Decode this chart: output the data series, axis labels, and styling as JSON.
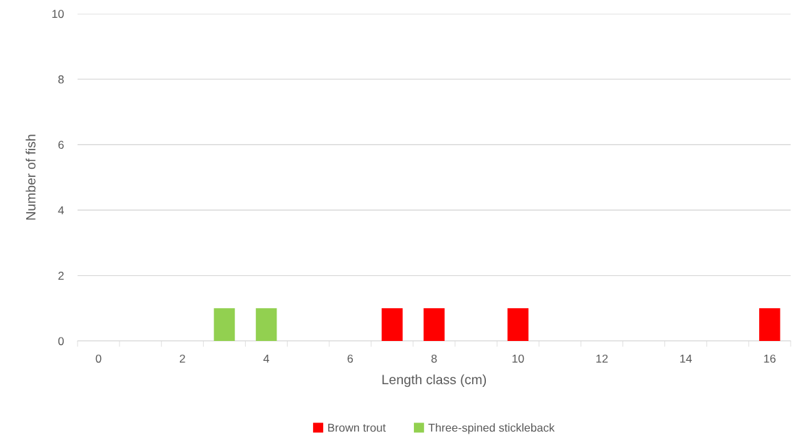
{
  "chart_data": {
    "type": "bar",
    "xlabel": "Length class (cm)",
    "ylabel": "Number of fish",
    "categories": [
      "0",
      null,
      "2",
      null,
      "4",
      null,
      "6",
      null,
      "8",
      null,
      "10",
      null,
      "12",
      null,
      "14",
      null,
      "16"
    ],
    "series": [
      {
        "name": "Brown trout",
        "color": "#ff0000",
        "values": [
          0,
          0,
          0,
          0,
          0,
          0,
          0,
          1,
          1,
          0,
          1,
          0,
          0,
          0,
          0,
          0,
          1
        ]
      },
      {
        "name": "Three-spined stickleback",
        "color": "#92d050",
        "values": [
          0,
          0,
          0,
          1,
          1,
          0,
          0,
          0,
          0,
          0,
          0,
          0,
          0,
          0,
          0,
          0,
          0
        ]
      }
    ],
    "ylim": [
      0,
      10
    ],
    "yticks": [
      0,
      2,
      4,
      6,
      8,
      10
    ],
    "grid": "y",
    "legend": "bottom"
  }
}
